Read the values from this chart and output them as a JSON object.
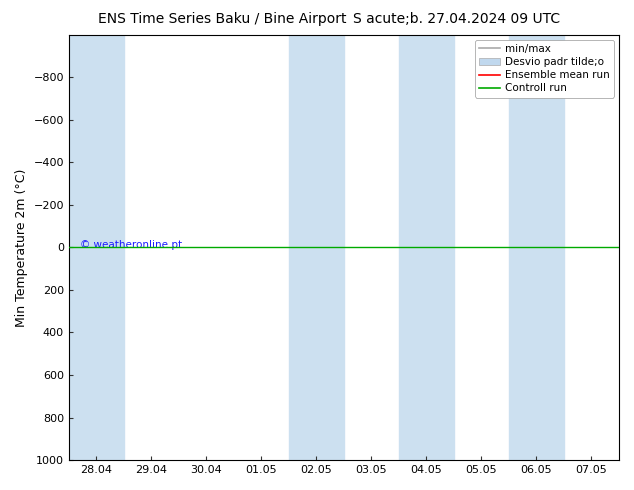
{
  "title_left": "ENS Time Series Baku / Bine Airport",
  "title_right": "S acute;b. 27.04.2024 09 UTC",
  "ylabel": "Min Temperature 2m (°C)",
  "ylim_bottom": 1000,
  "ylim_top": -1000,
  "yticks": [
    -800,
    -600,
    -400,
    -200,
    0,
    200,
    400,
    600,
    800,
    1000
  ],
  "xtick_labels": [
    "28.04",
    "29.04",
    "30.04",
    "01.05",
    "02.05",
    "03.05",
    "04.05",
    "05.05",
    "06.05",
    "07.05"
  ],
  "xtick_positions": [
    0,
    1,
    2,
    3,
    4,
    5,
    6,
    7,
    8,
    9
  ],
  "shaded_spans": [
    [
      0,
      1
    ],
    [
      4,
      5
    ],
    [
      6,
      7
    ],
    [
      8,
      9
    ]
  ],
  "shaded_color": "#cce0f0",
  "green_line_y": 0,
  "green_line_color": "#00aa00",
  "watermark": "© weatheronline.pt",
  "watermark_color": "#1a1aff",
  "legend_labels": [
    "min/max",
    "Desvio padr tilde;o",
    "Ensemble mean run",
    "Controll run"
  ],
  "legend_colors": [
    "#aaaaaa",
    "#c0d8ee",
    "#ff0000",
    "#00aa00"
  ],
  "legend_styles": [
    "line",
    "band",
    "line",
    "line"
  ],
  "background_color": "#ffffff",
  "title_fontsize": 10,
  "axis_label_fontsize": 9,
  "tick_fontsize": 8,
  "legend_fontsize": 7.5
}
